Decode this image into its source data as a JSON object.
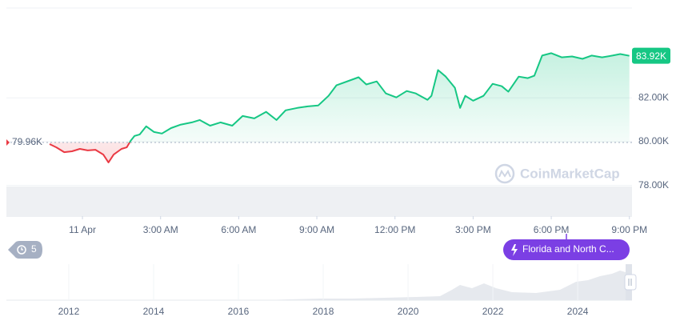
{
  "chart_data": {
    "type": "line",
    "x": [
      -1.26,
      -1.0,
      -0.7,
      -0.4,
      -0.1,
      0.2,
      0.5,
      0.8,
      1.0,
      1.2,
      1.5,
      1.7,
      1.85,
      2.0,
      2.2,
      2.45,
      2.75,
      3.05,
      3.4,
      3.75,
      4.2,
      4.5,
      4.9,
      5.3,
      5.75,
      6.15,
      6.6,
      7.05,
      7.45,
      7.8,
      8.25,
      8.65,
      9.05,
      9.45,
      9.75,
      10.35,
      10.6,
      10.9,
      11.3,
      11.65,
      12.05,
      12.45,
      12.8,
      13.25,
      13.4,
      13.65,
      13.95,
      14.3,
      14.5,
      14.7,
      15.0,
      15.4,
      15.75,
      16.1,
      16.35,
      16.75,
      17.1,
      17.35,
      17.65,
      18.0,
      18.4,
      18.8,
      19.2,
      19.55,
      19.95,
      20.35,
      20.65,
      21.0
    ],
    "values": [
      79.89,
      79.74,
      79.52,
      79.56,
      79.67,
      79.6,
      79.63,
      79.41,
      79.05,
      79.41,
      79.67,
      79.74,
      80.04,
      80.26,
      80.33,
      80.7,
      80.44,
      80.37,
      80.62,
      80.77,
      80.88,
      80.99,
      80.73,
      80.88,
      80.73,
      81.17,
      81.06,
      81.36,
      80.99,
      81.43,
      81.54,
      81.61,
      81.65,
      82.09,
      82.57,
      82.83,
      82.94,
      82.61,
      82.75,
      82.2,
      82.02,
      82.31,
      82.2,
      81.91,
      82.09,
      83.27,
      82.97,
      82.46,
      81.54,
      82.09,
      81.87,
      82.09,
      82.64,
      82.53,
      82.28,
      82.97,
      82.9,
      83.01,
      83.93,
      84.04,
      83.85,
      83.89,
      83.78,
      83.93,
      83.85,
      83.93,
      84.0,
      83.92
    ],
    "up_color": "#16c784",
    "down_color": "#ea3943",
    "xlim": [
      -2.92,
      21.1
    ],
    "xticks": [
      {
        "value": 0,
        "label": "11 Apr"
      },
      {
        "value": 3,
        "label": "3:00 AM"
      },
      {
        "value": 6,
        "label": "6:00 AM"
      },
      {
        "value": 9,
        "label": "9:00 AM"
      },
      {
        "value": 12,
        "label": "12:00 PM"
      },
      {
        "value": 15,
        "label": "3:00 PM"
      },
      {
        "value": 18,
        "label": "6:00 PM"
      },
      {
        "value": 21,
        "label": "9:00 PM"
      }
    ],
    "ylim": [
      76.6,
      86.1
    ],
    "yticks": [
      {
        "value": 78,
        "label": "78.00K"
      },
      {
        "value": 80,
        "label": "80.00K"
      },
      {
        "value": 82,
        "label": "82.00K"
      }
    ],
    "grid": true,
    "baseline": {
      "value": 79.96,
      "label": "79.96K"
    },
    "last_price": {
      "value": 83.92,
      "label": "83.92K"
    },
    "watermark": "CoinMarketCap",
    "history_button": 5,
    "event_label": "Florida and North C...",
    "navigator": {
      "xlim": [
        2010.53,
        2025.28
      ],
      "xticks": [
        2012,
        2014,
        2016,
        2018,
        2020,
        2022,
        2024
      ]
    }
  }
}
